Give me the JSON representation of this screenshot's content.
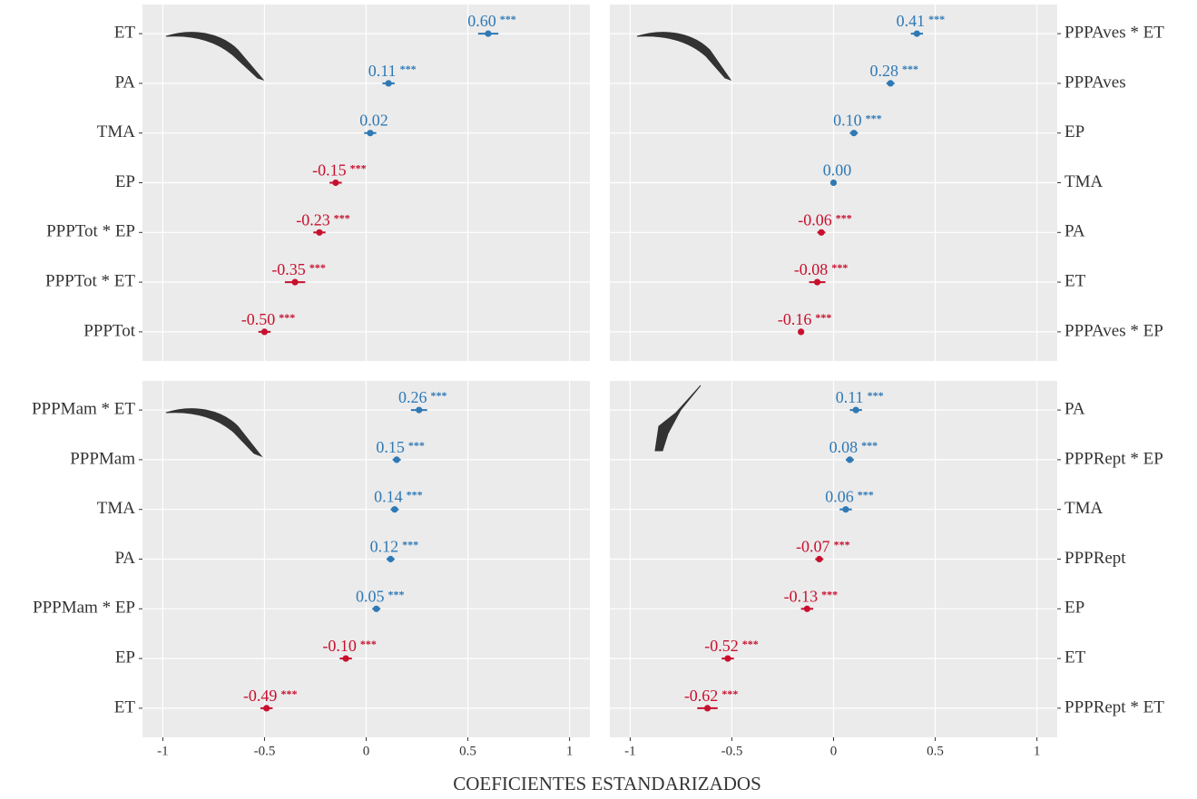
{
  "xlabel": "COEFICIENTES ESTANDARIZADOS",
  "chart_data": [
    {
      "type": "dot",
      "categories": [
        "ET",
        "PA",
        "TMA",
        "EP",
        "PPPTot * EP",
        "PPPTot * ET",
        "PPPTot"
      ],
      "values": [
        0.6,
        0.11,
        0.02,
        -0.15,
        -0.23,
        -0.35,
        -0.5
      ],
      "value_labels": [
        "0.60",
        "0.11",
        "0.02",
        "-0.15",
        "-0.23",
        "-0.35",
        "-0.50"
      ],
      "significance": [
        "***",
        "***",
        null,
        "***",
        "***",
        "***",
        "***"
      ],
      "errors": [
        0.05,
        0.03,
        0.03,
        0.03,
        0.03,
        0.05,
        0.03
      ],
      "xlim": [
        -1.1,
        1.1
      ],
      "xticks": [
        -1,
        -0.5,
        0,
        0.5,
        1
      ],
      "colors": {
        "positive": "#2f79b5",
        "negative": "#c8102e"
      },
      "yaxis_side": "left",
      "show_xticks": false,
      "grid": true
    },
    {
      "type": "dot",
      "categories": [
        "PPPAves * ET",
        "PPPAves",
        "EP",
        "TMA",
        "PA",
        "ET",
        "PPPAves * EP"
      ],
      "values": [
        0.41,
        0.28,
        0.1,
        0.0,
        -0.06,
        -0.08,
        -0.16
      ],
      "value_labels": [
        "0.41",
        "0.28",
        "0.10",
        "0.00",
        "-0.06",
        "-0.08",
        "-0.16"
      ],
      "significance": [
        "***",
        "***",
        "***",
        null,
        "***",
        "***",
        "***"
      ],
      "errors": [
        0.03,
        0.02,
        0.02,
        0.01,
        0.02,
        0.04,
        0.01
      ],
      "xlim": [
        -1.1,
        1.1
      ],
      "xticks": [
        -1,
        -0.5,
        0,
        0.5,
        1
      ],
      "colors": {
        "positive": "#2f79b5",
        "negative": "#c8102e"
      },
      "yaxis_side": "right",
      "show_xticks": false,
      "grid": true
    },
    {
      "type": "dot",
      "categories": [
        "PPPMam * ET",
        "PPPMam",
        "TMA",
        "PA",
        "PPPMam * EP",
        "EP",
        "ET"
      ],
      "values": [
        0.26,
        0.15,
        0.14,
        0.12,
        0.05,
        -0.1,
        -0.49
      ],
      "value_labels": [
        "0.26",
        "0.15",
        "0.14",
        "0.12",
        "0.05",
        "-0.10",
        "-0.49"
      ],
      "significance": [
        "***",
        "***",
        "***",
        "***",
        "***",
        "***",
        "***"
      ],
      "errors": [
        0.04,
        0.02,
        0.02,
        0.02,
        0.02,
        0.03,
        0.03
      ],
      "xlim": [
        -1.1,
        1.1
      ],
      "xticks": [
        -1,
        -0.5,
        0,
        0.5,
        1
      ],
      "colors": {
        "positive": "#2f79b5",
        "negative": "#c8102e"
      },
      "yaxis_side": "left",
      "show_xticks": true,
      "grid": true
    },
    {
      "type": "dot",
      "categories": [
        "PA",
        "PPPRept * EP",
        "TMA",
        "PPPRept",
        "EP",
        "ET",
        "PPPRept * ET"
      ],
      "values": [
        0.11,
        0.08,
        0.06,
        -0.07,
        -0.13,
        -0.52,
        -0.62
      ],
      "value_labels": [
        "0.11",
        "0.08",
        "0.06",
        "-0.07",
        "-0.13",
        "-0.52",
        "-0.62"
      ],
      "significance": [
        "***",
        "***",
        "***",
        "***",
        "***",
        "***",
        "***"
      ],
      "errors": [
        0.03,
        0.02,
        0.03,
        0.02,
        0.03,
        0.03,
        0.05
      ],
      "xlim": [
        -1.1,
        1.1
      ],
      "xticks": [
        -1,
        -0.5,
        0,
        0.5,
        1
      ],
      "colors": {
        "positive": "#2f79b5",
        "negative": "#c8102e"
      },
      "yaxis_side": "right",
      "show_xticks": true,
      "grid": true
    }
  ]
}
